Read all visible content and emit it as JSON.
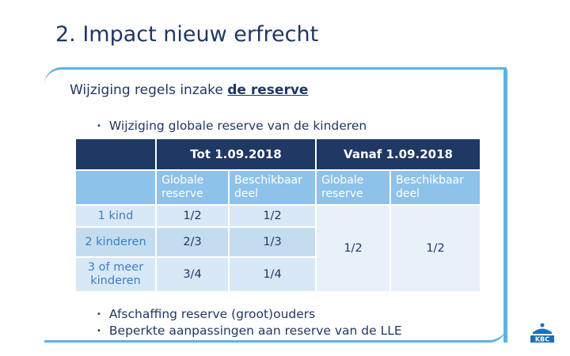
{
  "slide": {
    "title": "2. Impact nieuw erfrecht",
    "subtitle_prefix": "Wijziging regels inzake ",
    "subtitle_emph": "de reserve",
    "bullets": [
      "Wijziging globale reserve van de kinderen",
      "Afschaffing reserve (groot)ouders",
      "Beperkte aanpassingen aan reserve van de LLE"
    ]
  },
  "table": {
    "header": [
      "Tot 1.09.2018",
      "Vanaf 1.09.2018"
    ],
    "subheader": [
      "Globale reserve",
      "Beschikbaar deel",
      "Globale reserve",
      "Beschikbaar deel"
    ],
    "rows": [
      {
        "label": "1 kind",
        "v1": "1/2",
        "v2": "1/2"
      },
      {
        "label": "2 kinderen",
        "v1": "2/3",
        "v2": "1/3"
      },
      {
        "label": "3 of meer kinderen",
        "v1": "3/4",
        "v2": "1/4"
      }
    ],
    "merged": [
      "1/2",
      "1/2"
    ]
  },
  "logo": {
    "text": "KBC",
    "color": "#1f6fb5"
  },
  "colors": {
    "accent": "#5bb4e5",
    "dark": "#1f3864",
    "header_light": "#8dc2ea"
  }
}
